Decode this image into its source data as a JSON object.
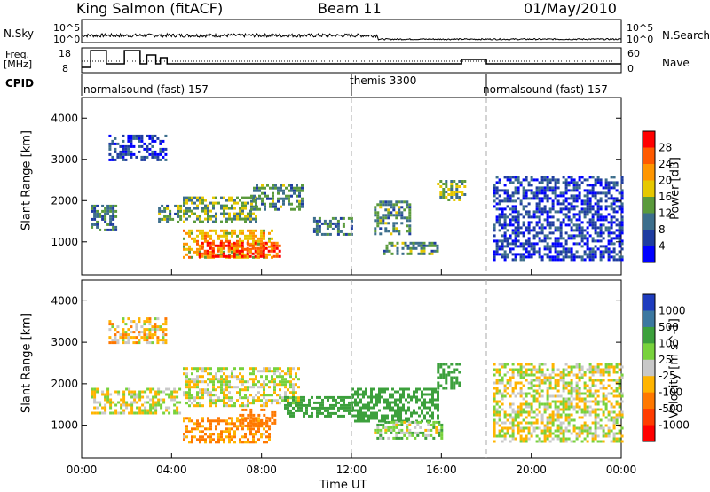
{
  "header": {
    "station": "King Salmon (fitACF)",
    "beam": "Beam 11",
    "date": "01/May/2010"
  },
  "noise_panel": {
    "left_label": "N.Sky",
    "right_label": "N.Search",
    "left_ticks": [
      "10^5",
      "10^0"
    ],
    "right_ticks": [
      "10^5",
      "10^0"
    ]
  },
  "freq_panel": {
    "left_label_line1": "Freq.",
    "left_label_line2": "[MHz]",
    "right_label": "Nave",
    "left_ticks": [
      "18",
      "8"
    ],
    "right_ticks": [
      "60",
      "0"
    ]
  },
  "cpid": {
    "label": "CPID",
    "segments": [
      {
        "name": "normalsound (fast) 157",
        "start_hour": 0,
        "end_hour": 12
      },
      {
        "name": "themis 3300",
        "start_hour": 12,
        "end_hour": 18
      },
      {
        "name": "normalsound (fast) 157",
        "start_hour": 18,
        "end_hour": 24
      }
    ]
  },
  "x_axis": {
    "label": "Time UT",
    "ticks": [
      "00:00",
      "04:00",
      "08:00",
      "12:00",
      "16:00",
      "20:00",
      "00:00"
    ]
  },
  "power_colorbar": {
    "label": "Power [dB]",
    "ticks": [
      "28",
      "24",
      "20",
      "16",
      "12",
      "8",
      "4"
    ],
    "colors": [
      "#ff0000",
      "#ff5a00",
      "#ff9600",
      "#e6c800",
      "#5a9a3c",
      "#3c6e8c",
      "#1e3ca0",
      "#0000ff"
    ]
  },
  "velocity_colorbar": {
    "label": "Velocity [m s^-1]",
    "ticks": [
      "1000",
      "500",
      "100",
      "25",
      "-25",
      "-100",
      "-500",
      "-1000"
    ],
    "colors": [
      "#1e3cbe",
      "#3c78a0",
      "#3ca03c",
      "#78d23c",
      "#c8c8c8",
      "#ffb400",
      "#ff7800",
      "#ff3c00",
      "#ff0000"
    ]
  },
  "chart_data": {
    "type": "heatmap",
    "panels": [
      {
        "name": "power",
        "ylabel": "Slant Range [km]",
        "ylim": [
          200,
          4500
        ],
        "yticks": [
          1000,
          2000,
          3000,
          4000
        ],
        "xlim": [
          0,
          24
        ],
        "regions": [
          {
            "t0": 0.4,
            "t1": 1.5,
            "r0": 1300,
            "r1": 1900,
            "value": 10
          },
          {
            "t0": 3.4,
            "t1": 4.4,
            "r0": 1500,
            "r1": 1900,
            "value": 12
          },
          {
            "t0": 4.5,
            "t1": 8.5,
            "r0": 600,
            "r1": 1300,
            "value": 20
          },
          {
            "t0": 5.2,
            "t1": 8.8,
            "r0": 620,
            "r1": 1000,
            "value": 28
          },
          {
            "t0": 4.5,
            "t1": 7.8,
            "r0": 1500,
            "r1": 2100,
            "value": 14
          },
          {
            "t0": 7.5,
            "t1": 9.8,
            "r0": 1800,
            "r1": 2400,
            "value": 12
          },
          {
            "t0": 10.3,
            "t1": 12.0,
            "r0": 1200,
            "r1": 1600,
            "value": 10
          },
          {
            "t0": 13.0,
            "t1": 14.6,
            "r0": 1200,
            "r1": 2000,
            "value": 12
          },
          {
            "t0": 13.4,
            "t1": 15.8,
            "r0": 700,
            "r1": 1000,
            "value": 12
          },
          {
            "t0": 15.8,
            "t1": 17.0,
            "r0": 2000,
            "r1": 2500,
            "value": 14
          },
          {
            "t0": 18.3,
            "t1": 24.0,
            "r0": 600,
            "r1": 2600,
            "value": 6
          },
          {
            "t0": 1.2,
            "t1": 3.8,
            "r0": 3000,
            "r1": 3600,
            "value": 6
          }
        ]
      },
      {
        "name": "velocity",
        "ylabel": "Slant Range [km]",
        "ylim": [
          200,
          4500
        ],
        "yticks": [
          1000,
          2000,
          3000,
          4000
        ],
        "xlim": [
          0,
          24
        ],
        "regions": [
          {
            "t0": 0.4,
            "t1": 4.4,
            "r0": 1300,
            "r1": 1900,
            "value": 0
          },
          {
            "t0": 4.5,
            "t1": 8.3,
            "r0": 600,
            "r1": 1200,
            "value": -120
          },
          {
            "t0": 7.0,
            "t1": 8.6,
            "r0": 1000,
            "r1": 1400,
            "value": -300
          },
          {
            "t0": 4.5,
            "t1": 9.6,
            "r0": 1500,
            "r1": 2400,
            "value": 0
          },
          {
            "t0": 9.0,
            "t1": 12.0,
            "r0": 1200,
            "r1": 1700,
            "value": 300
          },
          {
            "t0": 12.0,
            "t1": 15.8,
            "r0": 1100,
            "r1": 1900,
            "value": 400
          },
          {
            "t0": 13.0,
            "t1": 16.0,
            "r0": 700,
            "r1": 1100,
            "value": 60
          },
          {
            "t0": 15.8,
            "t1": 16.8,
            "r0": 1900,
            "r1": 2500,
            "value": 300
          },
          {
            "t0": 18.3,
            "t1": 24.0,
            "r0": 600,
            "r1": 2500,
            "value": 0
          },
          {
            "t0": 1.2,
            "t1": 3.8,
            "r0": 3000,
            "r1": 3600,
            "value": -50
          }
        ]
      }
    ]
  }
}
